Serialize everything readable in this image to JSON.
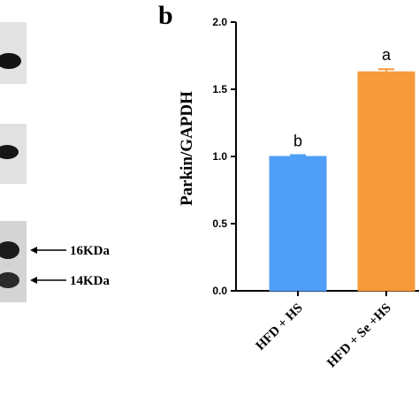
{
  "panel_letter": "b",
  "blot": {
    "markers": [
      {
        "label": "16KDa"
      },
      {
        "label": "14KDa"
      }
    ]
  },
  "colors": {
    "bar_hfd_hs": "#4f9ef7",
    "bar_hfd_se_hs": "#f79a3a",
    "axis": "#000000"
  },
  "chart_data": {
    "type": "bar",
    "categories": [
      "HFD + HS",
      "HFD + Se +HS"
    ],
    "values": [
      1.0,
      1.63
    ],
    "errors": [
      0.01,
      0.02
    ],
    "significance": [
      "b",
      "a"
    ],
    "ylabel": "Parkin/GAPDH",
    "xlabel": "",
    "ylim": [
      0.0,
      2.0
    ],
    "yticks": [
      "0.0",
      "0.5",
      "1.0",
      "1.5",
      "2.0"
    ],
    "grid": false
  }
}
